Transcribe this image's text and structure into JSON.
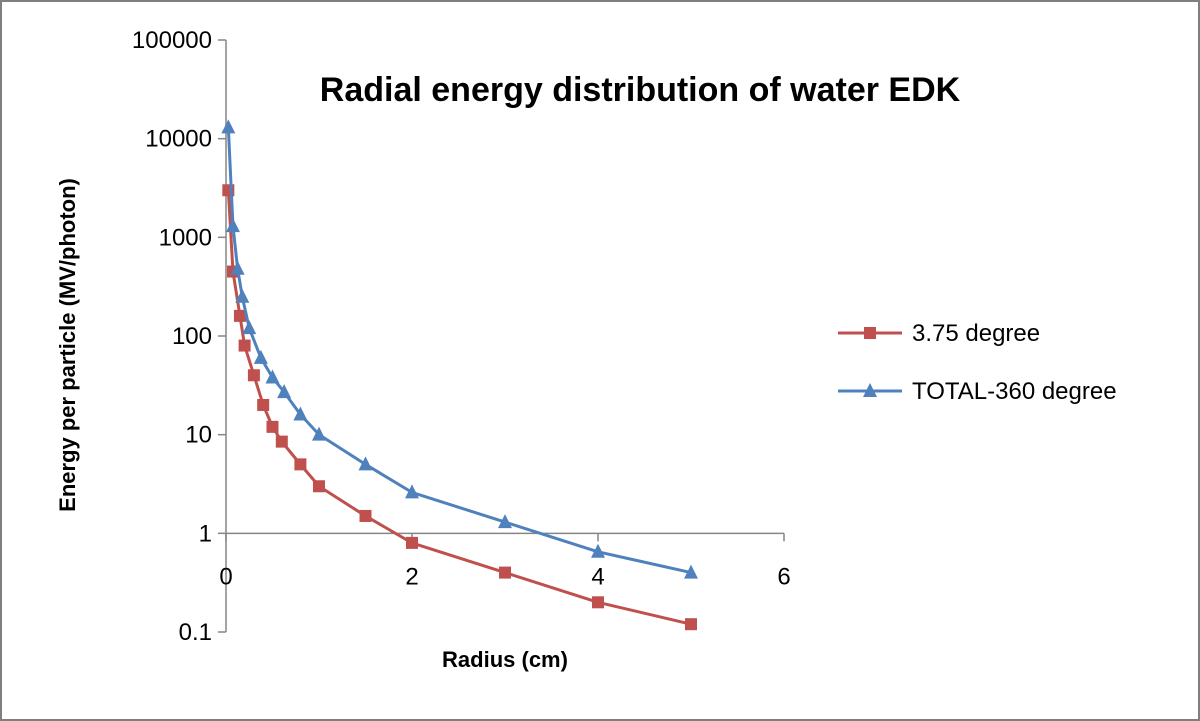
{
  "chart_data": {
    "type": "scatter",
    "title": "Radial energy distribution of water EDK",
    "xlabel": "Radius (cm)",
    "ylabel": "Energy per particle (MV/photon)",
    "xlim": [
      0,
      6
    ],
    "ylim": [
      0.1,
      100000
    ],
    "yscale": "log",
    "x_ticks": [
      "0",
      "2",
      "4",
      "6"
    ],
    "y_ticks": [
      "0.1",
      "1",
      "10",
      "100",
      "1000",
      "10000",
      "100000"
    ],
    "grid": false,
    "legend_position": "right",
    "series": [
      {
        "name": "3.75 degree",
        "color": "#c0504d",
        "marker": "square",
        "x": [
          0.025,
          0.075,
          0.15,
          0.2,
          0.3,
          0.4,
          0.5,
          0.6,
          0.8,
          1.0,
          1.5,
          2.0,
          3.0,
          4.0,
          5.0
        ],
        "y": [
          3000,
          450,
          160,
          80,
          40,
          20,
          12,
          8.5,
          5,
          3,
          1.5,
          0.8,
          0.4,
          0.2,
          0.12
        ]
      },
      {
        "name": "TOTAL-360 degree",
        "color": "#4f81bd",
        "marker": "triangle",
        "x": [
          0.025,
          0.075,
          0.125,
          0.175,
          0.25,
          0.375,
          0.5,
          0.625,
          0.8,
          1.0,
          1.5,
          2.0,
          3.0,
          4.0,
          5.0
        ],
        "y": [
          13000,
          1300,
          480,
          250,
          120,
          60,
          38,
          27,
          16,
          10,
          5,
          2.6,
          1.3,
          0.65,
          0.4
        ]
      }
    ]
  }
}
